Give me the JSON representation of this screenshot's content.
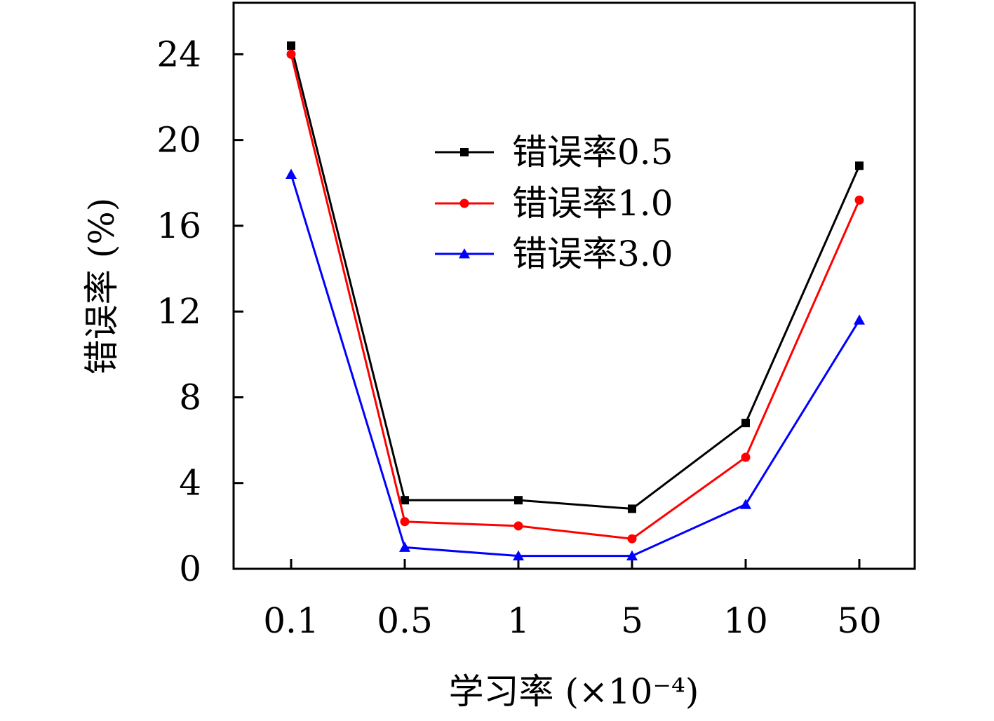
{
  "chart_data": {
    "type": "line",
    "categories": [
      "0.1",
      "0.5",
      "1",
      "5",
      "10",
      "50"
    ],
    "xlabel": "学习率 (×10⁻⁴)",
    "ylabel": "错误率 (%)",
    "ylim": [
      0,
      26.4
    ],
    "yticks": [
      0,
      4,
      8,
      12,
      16,
      20,
      24
    ],
    "yticklabels": [
      "0",
      "4",
      "8",
      "12",
      "16",
      "20",
      "24"
    ],
    "grid": false,
    "legend_position": "upper-center",
    "series": [
      {
        "name": "错误率0.5",
        "color": "#000000",
        "marker": "square",
        "values": [
          24.4,
          3.2,
          3.2,
          2.8,
          6.8,
          18.8
        ]
      },
      {
        "name": "错误率1.0",
        "color": "#ff0000",
        "marker": "circle",
        "values": [
          24.0,
          2.2,
          2.0,
          1.4,
          5.2,
          17.2
        ]
      },
      {
        "name": "错误率3.0",
        "color": "#0000ff",
        "marker": "triangle",
        "values": [
          18.4,
          1.0,
          0.6,
          0.6,
          3.0,
          11.6
        ]
      }
    ]
  }
}
